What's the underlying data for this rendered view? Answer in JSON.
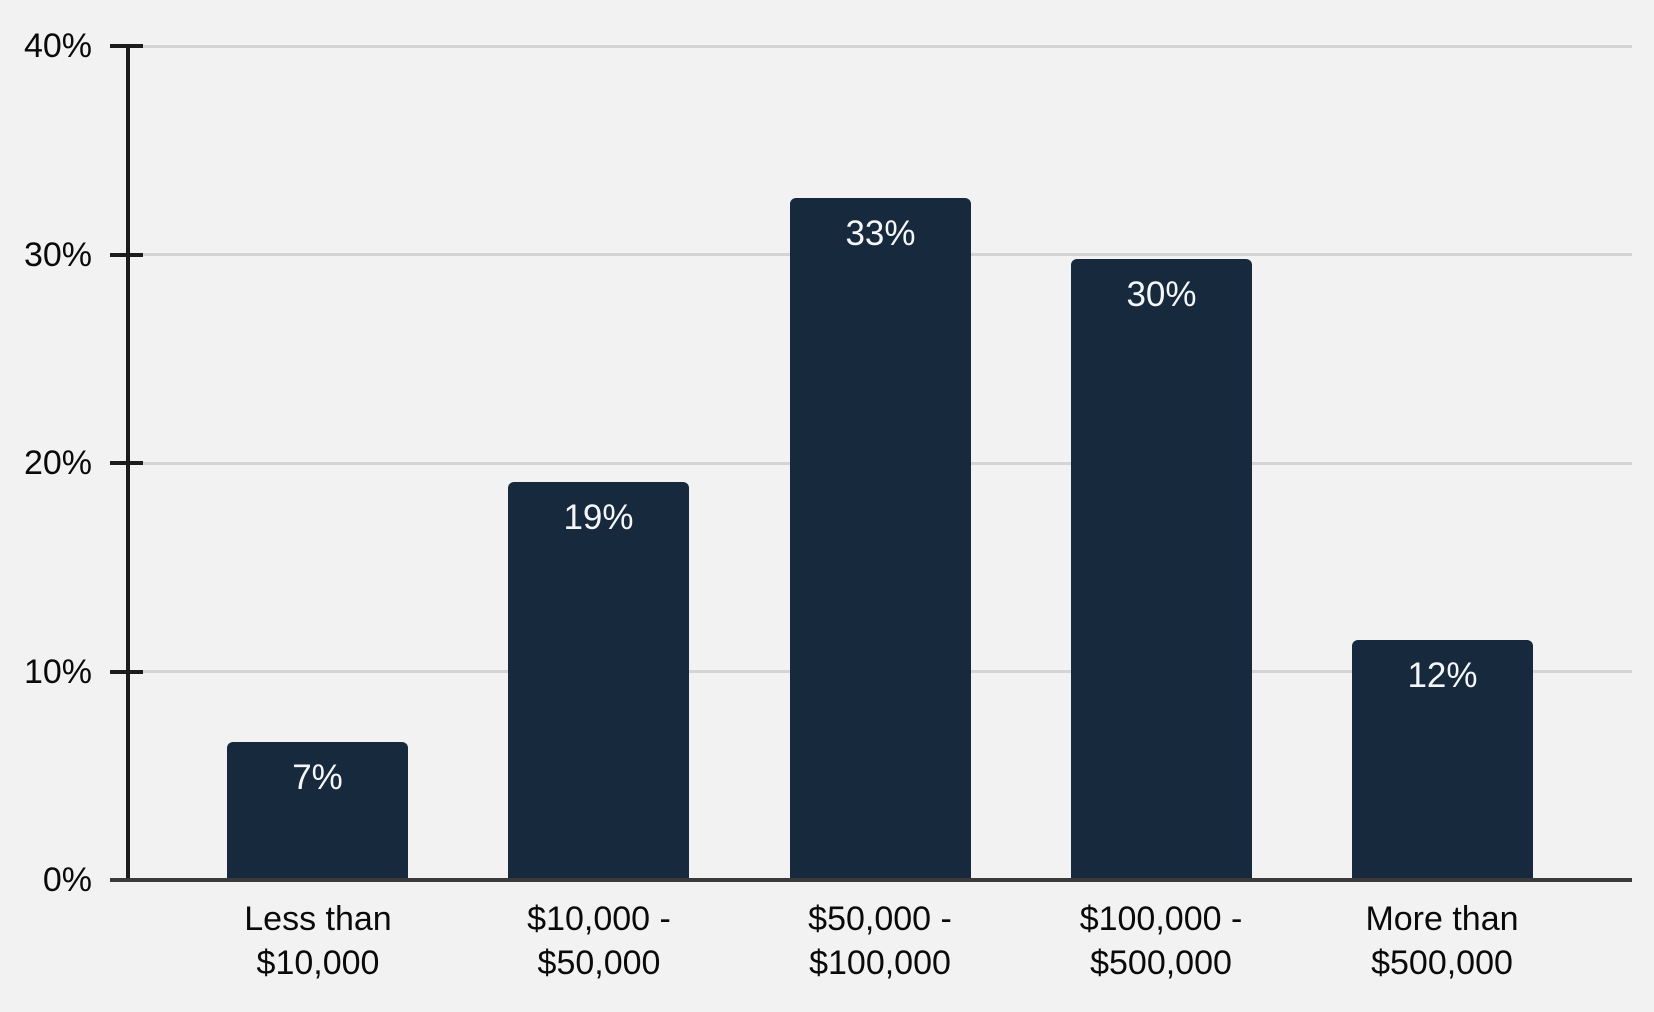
{
  "chart_data": {
    "type": "bar",
    "title": "",
    "xlabel": "",
    "ylabel": "",
    "categories": [
      "Less than\n$10,000",
      "$10,000 -\n$50,000",
      "$50,000 -\n$100,000",
      "$100,000 -\n$500,000",
      "More than\n$500,000"
    ],
    "values": [
      7,
      19,
      33,
      30,
      12
    ],
    "values_precise": [
      6.6,
      19.1,
      32.7,
      29.8,
      11.5
    ],
    "bar_labels": [
      "7%",
      "19%",
      "33%",
      "30%",
      "12%"
    ],
    "ylim": [
      0,
      40
    ],
    "yticks": [
      0,
      10,
      20,
      30,
      40
    ],
    "ytick_labels": [
      "0%",
      "10%",
      "20%",
      "30%",
      "40%"
    ],
    "grid": true,
    "legend": false,
    "colors": {
      "background": "#f2f2f2",
      "bar_fill": "#17293d",
      "bar_value_text": "#f4f6f8",
      "gridline": "#d4d4d4",
      "y_axis_line": "#1c1c1c",
      "x_axis_line": "#3a3a3a",
      "tick": "#1c1c1c",
      "axis_text": "#0a0a0a"
    }
  }
}
